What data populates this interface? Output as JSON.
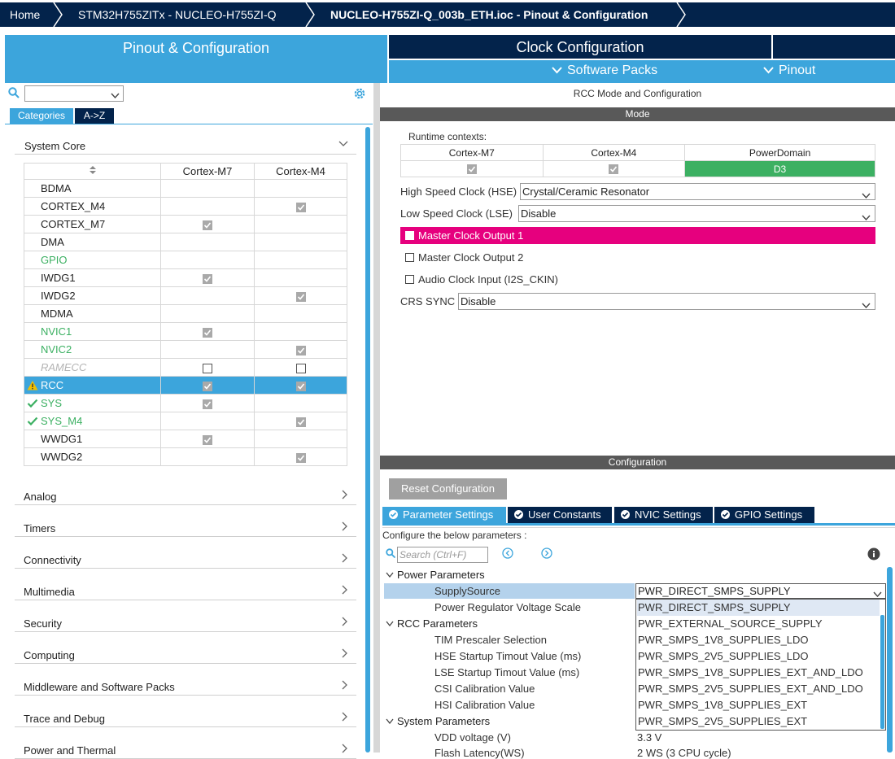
{
  "breadcrumb": {
    "items": [
      "Home",
      "STM32H755ZITx  -  NUCLEO-H755ZI-Q",
      "NUCLEO-H755ZI-Q_003b_ETH.ioc - Pinout & Configuration"
    ]
  },
  "main_tabs": {
    "pinout": "Pinout & Configuration",
    "clock": "Clock Configuration"
  },
  "submenu": {
    "software_packs": "Software Packs",
    "pinout": "Pinout"
  },
  "left": {
    "category_tabs": [
      "Categories",
      "A->Z"
    ],
    "system_core_label": "System Core",
    "table_header": {
      "sort_icon": "sort-icon",
      "col1": "Cortex-M7",
      "col2": "Cortex-M4"
    },
    "ips": [
      {
        "name": "BDMA",
        "m7": "",
        "m4": "",
        "style": "normal",
        "status": ""
      },
      {
        "name": "CORTEX_M4",
        "m7": "",
        "m4": "checked",
        "style": "normal",
        "status": ""
      },
      {
        "name": "CORTEX_M7",
        "m7": "checked",
        "m4": "",
        "style": "normal",
        "status": ""
      },
      {
        "name": "DMA",
        "m7": "",
        "m4": "",
        "style": "normal",
        "status": ""
      },
      {
        "name": "GPIO",
        "m7": "",
        "m4": "",
        "style": "green",
        "status": ""
      },
      {
        "name": "IWDG1",
        "m7": "checked",
        "m4": "",
        "style": "normal",
        "status": ""
      },
      {
        "name": "IWDG2",
        "m7": "",
        "m4": "checked",
        "style": "normal",
        "status": ""
      },
      {
        "name": "MDMA",
        "m7": "",
        "m4": "",
        "style": "normal",
        "status": ""
      },
      {
        "name": "NVIC1",
        "m7": "checked",
        "m4": "",
        "style": "green",
        "status": ""
      },
      {
        "name": "NVIC2",
        "m7": "",
        "m4": "checked",
        "style": "green",
        "status": ""
      },
      {
        "name": "RAMECC",
        "m7": "empty",
        "m4": "empty",
        "style": "disabled",
        "status": ""
      },
      {
        "name": "RCC",
        "m7": "checked",
        "m4": "checked",
        "style": "selected",
        "status": "warning"
      },
      {
        "name": "SYS",
        "m7": "checked",
        "m4": "",
        "style": "green",
        "status": "ok"
      },
      {
        "name": "SYS_M4",
        "m7": "",
        "m4": "checked",
        "style": "green",
        "status": "ok"
      },
      {
        "name": "WWDG1",
        "m7": "checked",
        "m4": "",
        "style": "normal",
        "status": ""
      },
      {
        "name": "WWDG2",
        "m7": "",
        "m4": "checked",
        "style": "normal",
        "status": ""
      }
    ],
    "categories": [
      "Analog",
      "Timers",
      "Connectivity",
      "Multimedia",
      "Security",
      "Computing",
      "Middleware and Software Packs",
      "Trace and Debug",
      "Power and Thermal"
    ]
  },
  "rcc": {
    "title": "RCC Mode and Configuration",
    "mode_label": "Mode",
    "runtime_label": "Runtime contexts:",
    "contexts": [
      "Cortex-M7",
      "Cortex-M4",
      "PowerDomain"
    ],
    "context_values": [
      "checked",
      "checked",
      "D3"
    ],
    "hse_label": "High Speed Clock (HSE)",
    "hse_value": "Crystal/Ceramic Resonator",
    "lse_label": "Low Speed Clock (LSE)",
    "lse_value": "Disable",
    "mco1": "Master Clock Output 1",
    "mco2": "Master Clock Output 2",
    "audio": "Audio Clock Input (I2S_CKIN)",
    "crs_label": "CRS SYNC",
    "crs_value": "Disable",
    "highlight_color": "#e6007e"
  },
  "config": {
    "header": "Configuration",
    "reset_button": "Reset Configuration",
    "tabs": [
      "Parameter Settings",
      "User Constants",
      "NVIC Settings",
      "GPIO Settings"
    ],
    "configure_label": "Configure the below parameters :",
    "search_placeholder": "Search (Ctrl+F)",
    "groups": {
      "power": "Power Parameters",
      "rcc": "RCC Parameters",
      "system": "System Parameters"
    },
    "params": {
      "supply_source": "SupplySource",
      "pwr_scale": "Power Regulator Voltage Scale",
      "tim_prescaler": "TIM Prescaler Selection",
      "hse_startup": "HSE Startup Timout Value (ms)",
      "lse_startup": "LSE Startup Timout Value (ms)",
      "csi_cal": "CSI Calibration Value",
      "hsi_cal": "HSI Calibration Value",
      "vdd": "VDD voltage (V)",
      "flash_latency": "Flash Latency(WS)"
    },
    "supply_value": "PWR_DIRECT_SMPS_SUPPLY",
    "supply_options": [
      "PWR_DIRECT_SMPS_SUPPLY",
      "PWR_EXTERNAL_SOURCE_SUPPLY",
      "PWR_SMPS_1V8_SUPPLIES_LDO",
      "PWR_SMPS_2V5_SUPPLIES_LDO",
      "PWR_SMPS_1V8_SUPPLIES_EXT_AND_LDO",
      "PWR_SMPS_2V5_SUPPLIES_EXT_AND_LDO",
      "PWR_SMPS_1V8_SUPPLIES_EXT",
      "PWR_SMPS_2V5_SUPPLIES_EXT"
    ],
    "vdd_value": "3.3 V",
    "flash_value": "2 WS (3 CPU cycle)"
  }
}
